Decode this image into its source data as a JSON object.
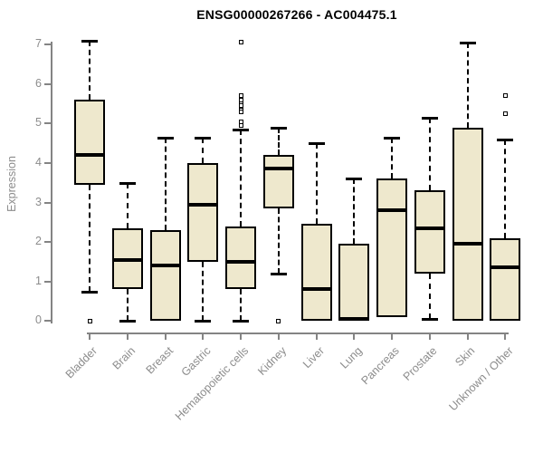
{
  "chart_data": {
    "type": "boxplot",
    "title": "ENSG00000267266 - AC004475.1",
    "ylabel": "Expression",
    "xlabel": "",
    "ylim": [
      0,
      7
    ],
    "yticks": [
      0,
      1,
      2,
      3,
      4,
      5,
      6,
      7
    ],
    "grid": false,
    "legend": false,
    "categories": [
      "Bladder",
      "Brain",
      "Breast",
      "Gastric",
      "Hematopoietic cells",
      "Kidney",
      "Liver",
      "Lung",
      "Pancreas",
      "Prostate",
      "Skin",
      "Unknown / Other"
    ],
    "boxes": [
      {
        "category": "Bladder",
        "whisker_low": 0.75,
        "q1": 3.45,
        "median": 4.2,
        "q3": 5.6,
        "whisker_high": 7.1,
        "outliers": [
          0.0
        ]
      },
      {
        "category": "Brain",
        "whisker_low": 0.0,
        "q1": 0.8,
        "median": 1.55,
        "q3": 2.35,
        "whisker_high": 3.5,
        "outliers": []
      },
      {
        "category": "Breast",
        "whisker_low": 0.0,
        "q1": 0.0,
        "median": 1.4,
        "q3": 2.3,
        "whisker_high": 4.65,
        "outliers": []
      },
      {
        "category": "Gastric",
        "whisker_low": 0.0,
        "q1": 1.5,
        "median": 2.95,
        "q3": 4.0,
        "whisker_high": 4.65,
        "outliers": []
      },
      {
        "category": "Hematopoietic cells",
        "whisker_low": 0.0,
        "q1": 0.8,
        "median": 1.5,
        "q3": 2.4,
        "whisker_high": 4.85,
        "outliers": [
          7.05,
          5.7,
          5.6,
          5.5,
          5.45,
          5.35,
          5.3,
          5.05,
          4.95
        ]
      },
      {
        "category": "Kidney",
        "whisker_low": 1.2,
        "q1": 2.85,
        "median": 3.85,
        "q3": 4.2,
        "whisker_high": 4.9,
        "outliers": [
          0.0
        ]
      },
      {
        "category": "Liver",
        "whisker_low": 0.0,
        "q1": 0.0,
        "median": 0.8,
        "q3": 2.45,
        "whisker_high": 4.5,
        "outliers": []
      },
      {
        "category": "Lung",
        "whisker_low": 0.0,
        "q1": 0.0,
        "median": 0.05,
        "q3": 1.95,
        "whisker_high": 3.6,
        "outliers": []
      },
      {
        "category": "Pancreas",
        "whisker_low": 0.1,
        "q1": 0.1,
        "median": 2.8,
        "q3": 3.6,
        "whisker_high": 4.65,
        "outliers": []
      },
      {
        "category": "Prostate",
        "whisker_low": 0.05,
        "q1": 1.2,
        "median": 2.35,
        "q3": 3.3,
        "whisker_high": 5.15,
        "outliers": []
      },
      {
        "category": "Skin",
        "whisker_low": 0.0,
        "q1": 0.0,
        "median": 1.95,
        "q3": 4.9,
        "whisker_high": 7.05,
        "outliers": []
      },
      {
        "category": "Unknown / Other",
        "whisker_low": 0.0,
        "q1": 0.0,
        "median": 1.35,
        "q3": 2.1,
        "whisker_high": 4.6,
        "outliers": [
          5.7,
          5.25
        ]
      }
    ],
    "colors": {
      "box_fill": "#EEE8CD",
      "box_border": "#000000",
      "median": "#000000",
      "axis": "#848484",
      "axis_text": "#8C8C8C",
      "title": "#000000",
      "background": "#FFFFFF"
    }
  }
}
